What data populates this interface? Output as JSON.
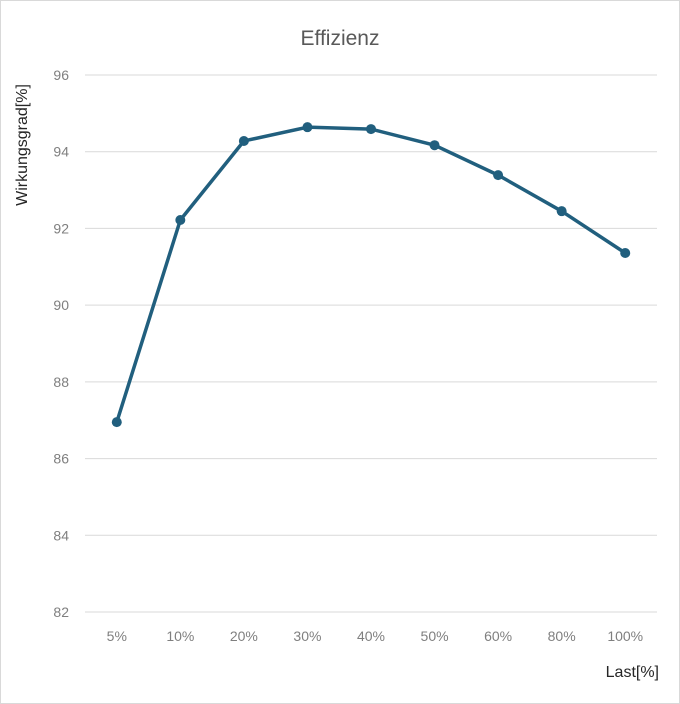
{
  "chart_data": {
    "type": "line",
    "title": "Effizienz",
    "xlabel": "Last[%]",
    "ylabel": "Wirkungsgrad[%]",
    "categories": [
      "5%",
      "10%",
      "20%",
      "30%",
      "40%",
      "50%",
      "60%",
      "80%",
      "100%"
    ],
    "series": [
      {
        "name": "Wirkungsgrad",
        "values": [
          86.95,
          92.22,
          94.28,
          94.64,
          94.59,
          94.17,
          93.39,
          92.45,
          91.36
        ],
        "color": "#215f7e",
        "markers": true
      }
    ],
    "ylim": [
      82,
      96
    ],
    "yticks": [
      82,
      84,
      86,
      88,
      90,
      92,
      94,
      96
    ],
    "grid": true,
    "legend": "none"
  }
}
